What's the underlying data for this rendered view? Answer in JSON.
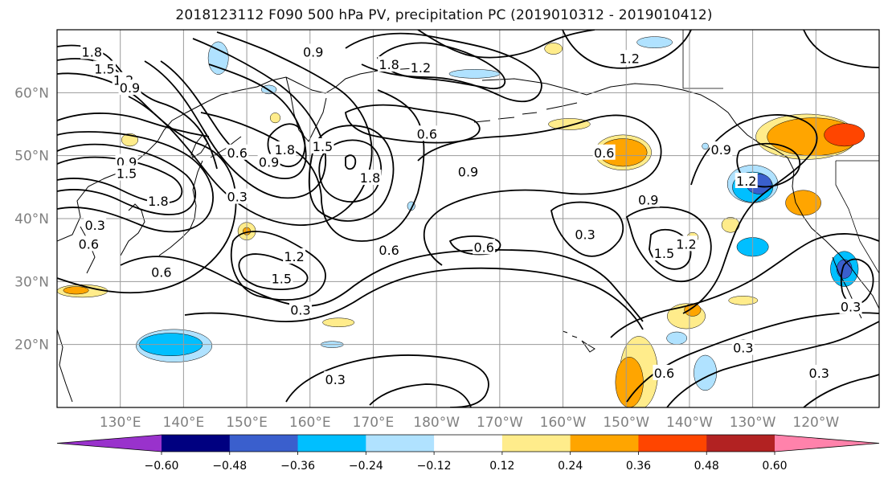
{
  "title": "2018123112 F090 500 hPa PV, precipitation PC (2019010312 - 2019010412)",
  "map": {
    "lon_range": [
      120,
      250
    ],
    "lat_range": [
      10,
      70
    ],
    "lat_ticks": [
      {
        "value": 20,
        "label": "20°N"
      },
      {
        "value": 30,
        "label": "30°N"
      },
      {
        "value": 40,
        "label": "40°N"
      },
      {
        "value": 50,
        "label": "50°N"
      },
      {
        "value": 60,
        "label": "60°N"
      }
    ],
    "lon_ticks": [
      {
        "value": 130,
        "label": "130°E"
      },
      {
        "value": 140,
        "label": "140°E"
      },
      {
        "value": 150,
        "label": "150°E"
      },
      {
        "value": 160,
        "label": "160°E"
      },
      {
        "value": 170,
        "label": "170°E"
      },
      {
        "value": 180,
        "label": "180°W"
      },
      {
        "value": 190,
        "label": "170°W"
      },
      {
        "value": 200,
        "label": "160°W"
      },
      {
        "value": 210,
        "label": "150°W"
      },
      {
        "value": 220,
        "label": "140°W"
      },
      {
        "value": 230,
        "label": "130°W"
      },
      {
        "value": 240,
        "label": "120°W"
      }
    ],
    "grid": true,
    "pv_contour_labels": [
      {
        "text": "1.8",
        "lon": 125.5,
        "lat": 66.5
      },
      {
        "text": "1.5",
        "lon": 127.5,
        "lat": 63.8
      },
      {
        "text": "1.2",
        "lon": 130.5,
        "lat": 62.0
      },
      {
        "text": "0.9",
        "lon": 131.5,
        "lat": 60.8
      },
      {
        "text": "0.9",
        "lon": 131.0,
        "lat": 49.0
      },
      {
        "text": "1.5",
        "lon": 131.0,
        "lat": 47.2
      },
      {
        "text": "1.8",
        "lon": 136.0,
        "lat": 42.8
      },
      {
        "text": "0.3",
        "lon": 126.0,
        "lat": 39.0
      },
      {
        "text": "0.6",
        "lon": 125.0,
        "lat": 36.0
      },
      {
        "text": "0.6",
        "lon": 136.5,
        "lat": 31.5
      },
      {
        "text": "0.6",
        "lon": 148.5,
        "lat": 50.5
      },
      {
        "text": "0.3",
        "lon": 148.5,
        "lat": 43.5
      },
      {
        "text": "0.9",
        "lon": 153.5,
        "lat": 49.0
      },
      {
        "text": "1.8",
        "lon": 156.0,
        "lat": 51.0
      },
      {
        "text": "1.5",
        "lon": 162.0,
        "lat": 51.5
      },
      {
        "text": "1.8",
        "lon": 169.5,
        "lat": 46.5
      },
      {
        "text": "0.9",
        "lon": 160.5,
        "lat": 66.5
      },
      {
        "text": "1.8",
        "lon": 172.5,
        "lat": 64.5
      },
      {
        "text": "1.2",
        "lon": 177.5,
        "lat": 64.0
      },
      {
        "text": "0.6",
        "lon": 178.5,
        "lat": 53.5
      },
      {
        "text": "0.9",
        "lon": 185.0,
        "lat": 47.5
      },
      {
        "text": "0.6",
        "lon": 172.5,
        "lat": 35.0
      },
      {
        "text": "0.6",
        "lon": 187.5,
        "lat": 35.5
      },
      {
        "text": "1.2",
        "lon": 157.5,
        "lat": 34.0
      },
      {
        "text": "1.5",
        "lon": 155.5,
        "lat": 30.5
      },
      {
        "text": "0.3",
        "lon": 158.5,
        "lat": 25.5
      },
      {
        "text": "0.6",
        "lon": 206.5,
        "lat": 50.5
      },
      {
        "text": "0.9",
        "lon": 213.5,
        "lat": 43.0
      },
      {
        "text": "0.3",
        "lon": 203.5,
        "lat": 37.5
      },
      {
        "text": "1.5",
        "lon": 216.0,
        "lat": 34.5
      },
      {
        "text": "1.2",
        "lon": 219.5,
        "lat": 36.0
      },
      {
        "text": "0.9",
        "lon": 225.0,
        "lat": 51.0
      },
      {
        "text": "1.2",
        "lon": 229.0,
        "lat": 46.0
      },
      {
        "text": "1.2",
        "lon": 210.5,
        "lat": 65.5
      },
      {
        "text": "0.3",
        "lon": 164.0,
        "lat": 14.5
      },
      {
        "text": "0.6",
        "lon": 216.0,
        "lat": 15.5
      },
      {
        "text": "0.3",
        "lon": 228.5,
        "lat": 19.5
      },
      {
        "text": "0.3",
        "lon": 240.5,
        "lat": 15.5
      },
      {
        "text": "0.3",
        "lon": 245.5,
        "lat": 26.0
      }
    ],
    "precip_features": [
      {
        "level": "pos_0.24",
        "lon": 209.5,
        "lat": 50.5,
        "rx": 4.5,
        "ry": 2.8
      },
      {
        "level": "pos_0.36",
        "lon": 209.5,
        "lat": 50.5,
        "rx": 3.8,
        "ry": 2.2
      },
      {
        "level": "pos_0.24",
        "lon": 238.5,
        "lat": 53.0,
        "rx": 8.0,
        "ry": 3.6
      },
      {
        "level": "pos_0.36",
        "lon": 239.5,
        "lat": 53.0,
        "rx": 7.2,
        "ry": 3.0
      },
      {
        "level": "pos_0.48",
        "lon": 244.5,
        "lat": 53.3,
        "rx": 3.2,
        "ry": 1.8
      },
      {
        "level": "pos_0.36",
        "lon": 238.0,
        "lat": 42.5,
        "rx": 2.8,
        "ry": 2.0
      },
      {
        "level": "neg_0.24",
        "lon": 230.0,
        "lat": 45.5,
        "rx": 4.0,
        "ry": 3.0
      },
      {
        "level": "neg_0.36",
        "lon": 230.0,
        "lat": 45.0,
        "rx": 3.2,
        "ry": 2.4
      },
      {
        "level": "neg_0.48",
        "lon": 231.0,
        "lat": 45.5,
        "rx": 2.0,
        "ry": 1.6
      },
      {
        "level": "neg_0.36",
        "lon": 244.5,
        "lat": 32.0,
        "rx": 2.2,
        "ry": 2.8
      },
      {
        "level": "neg_0.48",
        "lon": 244.5,
        "lat": 32.0,
        "rx": 1.2,
        "ry": 1.5
      },
      {
        "level": "neg_0.36",
        "lon": 230.0,
        "lat": 35.5,
        "rx": 2.5,
        "ry": 1.5
      },
      {
        "level": "pos_0.24",
        "lon": 212.0,
        "lat": 15.5,
        "rx": 3.0,
        "ry": 5.8
      },
      {
        "level": "pos_0.36",
        "lon": 210.5,
        "lat": 14.0,
        "rx": 2.2,
        "ry": 4.0
      },
      {
        "level": "pos_0.24",
        "lon": 219.5,
        "lat": 24.5,
        "rx": 3.0,
        "ry": 2.0
      },
      {
        "level": "pos_0.36",
        "lon": 220.5,
        "lat": 25.5,
        "rx": 1.3,
        "ry": 1.0
      },
      {
        "level": "neg_0.24",
        "lon": 222.5,
        "lat": 15.5,
        "rx": 1.8,
        "ry": 2.8
      },
      {
        "level": "neg_0.24",
        "lon": 138.5,
        "lat": 19.8,
        "rx": 6.0,
        "ry": 2.6
      },
      {
        "level": "neg_0.36",
        "lon": 138.0,
        "lat": 20.0,
        "rx": 5.0,
        "ry": 1.8
      },
      {
        "level": "pos_0.24",
        "lon": 124.0,
        "lat": 28.5,
        "rx": 4.0,
        "ry": 1.0
      },
      {
        "level": "pos_0.36",
        "lon": 123.0,
        "lat": 28.6,
        "rx": 2.0,
        "ry": 0.6
      },
      {
        "level": "pos_0.24",
        "lon": 150.0,
        "lat": 38.0,
        "rx": 1.4,
        "ry": 1.4
      },
      {
        "level": "pos_0.36",
        "lon": 150.0,
        "lat": 38.0,
        "rx": 0.6,
        "ry": 0.6
      },
      {
        "level": "neg_0.24",
        "lon": 145.5,
        "lat": 65.5,
        "rx": 1.6,
        "ry": 2.6
      },
      {
        "level": "neg_0.24",
        "lon": 214.5,
        "lat": 68.0,
        "rx": 2.8,
        "ry": 0.9
      },
      {
        "level": "pos_0.24",
        "lon": 201.0,
        "lat": 55.0,
        "rx": 3.3,
        "ry": 0.9
      },
      {
        "level": "pos_0.24",
        "lon": 198.5,
        "lat": 67.0,
        "rx": 1.4,
        "ry": 0.9
      },
      {
        "level": "pos_0.24",
        "lon": 164.5,
        "lat": 23.5,
        "rx": 2.5,
        "ry": 0.7
      },
      {
        "level": "pos_0.24",
        "lon": 154.5,
        "lat": 56.0,
        "rx": 0.8,
        "ry": 0.8
      },
      {
        "level": "pos_0.24",
        "lon": 131.5,
        "lat": 52.5,
        "rx": 1.3,
        "ry": 1.0
      },
      {
        "level": "pos_0.24",
        "lon": 226.5,
        "lat": 39.0,
        "rx": 1.4,
        "ry": 1.2
      },
      {
        "level": "pos_0.24",
        "lon": 220.5,
        "lat": 37.0,
        "rx": 0.9,
        "ry": 0.8
      },
      {
        "level": "pos_0.24",
        "lon": 228.5,
        "lat": 27.0,
        "rx": 2.3,
        "ry": 0.7
      },
      {
        "level": "neg_0.24",
        "lon": 186.0,
        "lat": 63.0,
        "rx": 4.0,
        "ry": 0.7
      },
      {
        "level": "neg_0.24",
        "lon": 222.5,
        "lat": 51.5,
        "rx": 0.5,
        "ry": 0.5
      },
      {
        "level": "neg_0.24",
        "lon": 218.0,
        "lat": 21.0,
        "rx": 1.6,
        "ry": 1.0
      },
      {
        "level": "neg_0.24",
        "lon": 228.5,
        "lat": 20.0,
        "rx": 1.0,
        "ry": 0.8
      },
      {
        "level": "neg_0.24",
        "lon": 153.5,
        "lat": 60.5,
        "rx": 1.2,
        "ry": 0.7
      },
      {
        "level": "neg_0.24",
        "lon": 163.5,
        "lat": 20.0,
        "rx": 1.8,
        "ry": 0.5
      },
      {
        "level": "neg_0.24",
        "lon": 176.0,
        "lat": 42.0,
        "rx": 0.6,
        "ry": 0.7
      }
    ]
  },
  "colorbar": {
    "colors": [
      "#9932CC",
      "#000080",
      "#3A5FCD",
      "#00BFFF",
      "#B0E2FF",
      "#FFFFFF",
      "#FFEC8B",
      "#FFA500",
      "#FF4500",
      "#B22222",
      "#FF82AB"
    ],
    "tick_labels": [
      "−0.60",
      "−0.48",
      "−0.36",
      "−0.24",
      "−0.12",
      "0.12",
      "0.24",
      "0.36",
      "0.48",
      "0.60"
    ]
  }
}
